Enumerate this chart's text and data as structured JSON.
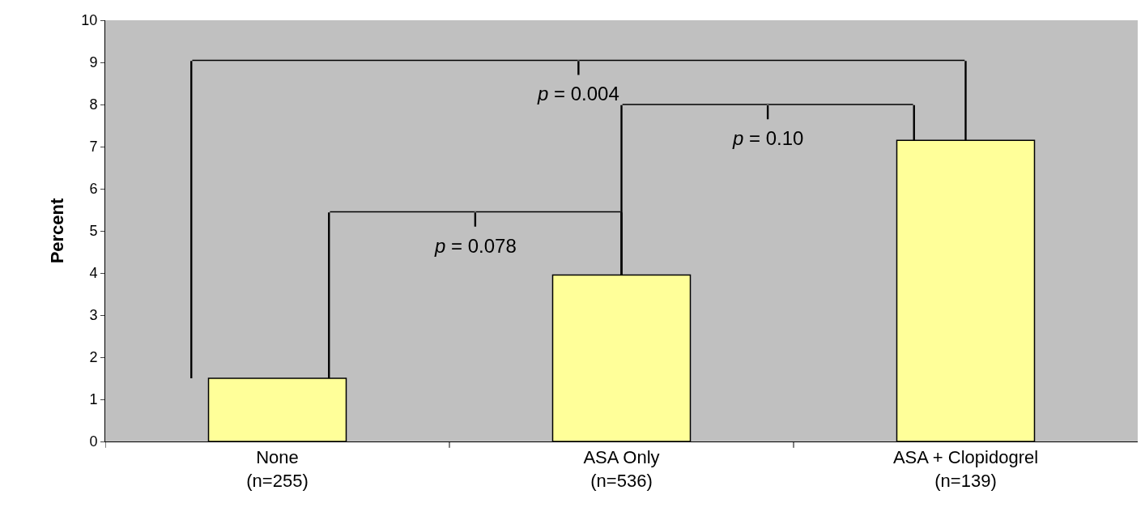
{
  "chart_data": {
    "type": "bar",
    "ylabel": "Percent",
    "categories": [
      "None\n(n=255)",
      "ASA Only\n(n=536)",
      "ASA + Clopidogrel\n(n=139)"
    ],
    "values": [
      1.5,
      3.95,
      7.15
    ],
    "color": "#ffff99",
    "ylim": [
      0,
      10
    ],
    "yticks": [
      0,
      1,
      2,
      3,
      4,
      5,
      6,
      7,
      8,
      9,
      10
    ],
    "grid": false,
    "legend": false,
    "annotations": [
      "p = 0.004",
      "p = 0.10",
      "p = 0.078"
    ]
  }
}
